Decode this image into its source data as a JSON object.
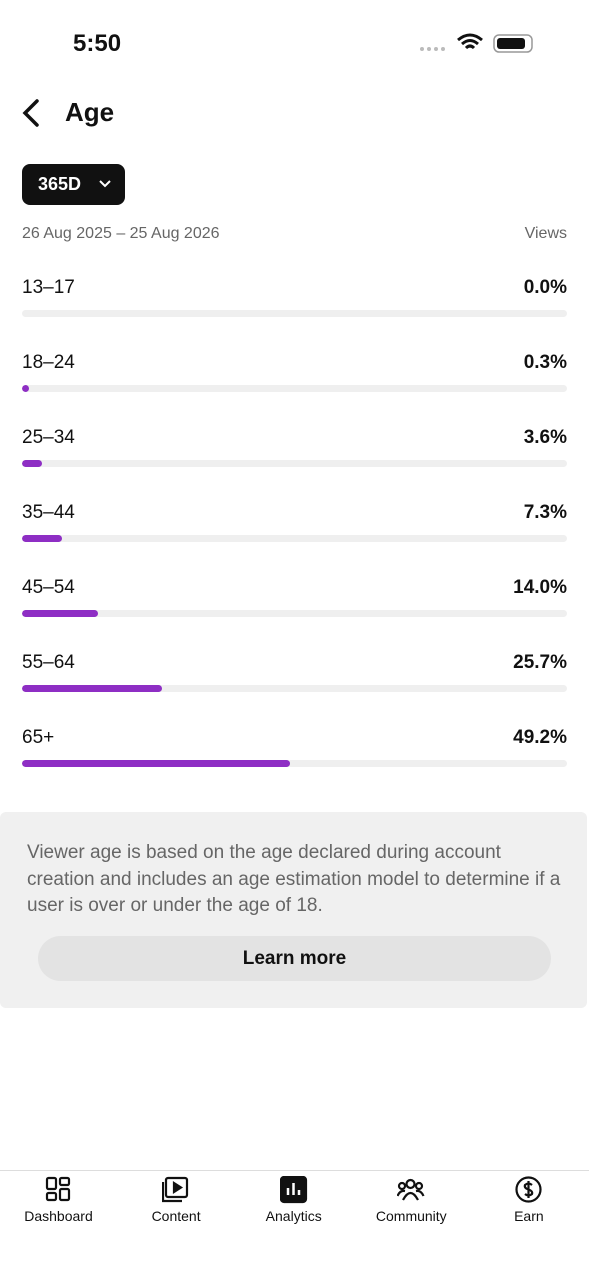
{
  "status_bar": {
    "time": "5:50"
  },
  "header": {
    "title": "Age"
  },
  "filter": {
    "label": "365D"
  },
  "date_range": "26 Aug 2025 – 25 Aug 2026",
  "metric": "Views",
  "chart_data": {
    "type": "bar",
    "orientation": "horizontal",
    "categories": [
      "13–17",
      "18–24",
      "25–34",
      "35–44",
      "45–54",
      "55–64",
      "65+"
    ],
    "values": [
      0.0,
      0.3,
      3.6,
      7.3,
      14.0,
      25.7,
      49.2
    ],
    "value_labels": [
      "0.0%",
      "0.3%",
      "3.6%",
      "7.3%",
      "14.0%",
      "25.7%",
      "49.2%"
    ],
    "color": "#8e2ec4",
    "xlim": [
      0,
      100
    ]
  },
  "info": {
    "text": "Viewer age is based on the age declared during account creation and includes an age estimation model to determine if a user is over or under the age of 18.",
    "button": "Learn more"
  },
  "nav": {
    "items": [
      "Dashboard",
      "Content",
      "Analytics",
      "Community",
      "Earn"
    ]
  }
}
